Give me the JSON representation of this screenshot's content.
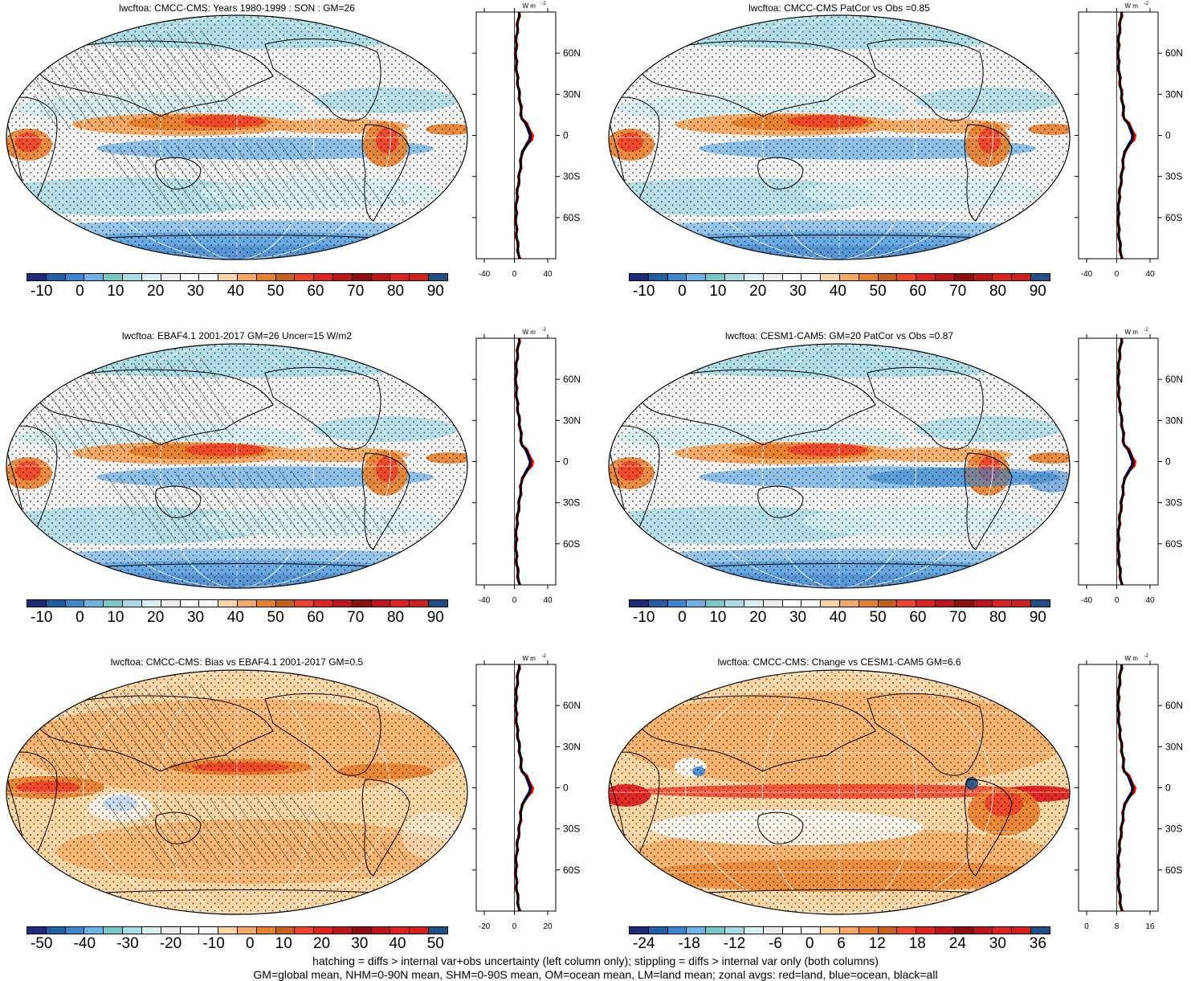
{
  "panels": [
    {
      "id": "p1",
      "title": "lwcftoa: CMCC-CMS: Years 1980-1999 : SON : GM=26",
      "scheme": "abs",
      "hatch": true,
      "cb_labels": [
        "-10",
        "0",
        "10",
        "20",
        "30",
        "40",
        "50",
        "60",
        "70",
        "80",
        "90"
      ],
      "zonal_xticks": [
        "-40",
        "0",
        "40"
      ],
      "zonal_lat_ticks": [
        "60N",
        "30N",
        "0",
        "30S",
        "60S"
      ]
    },
    {
      "id": "p2",
      "title": "lwcftoa: CMCC-CMS PatCor vs Obs =0.85",
      "scheme": "abs",
      "hatch": false,
      "cb_labels": [
        "-10",
        "0",
        "10",
        "20",
        "30",
        "40",
        "50",
        "60",
        "70",
        "80",
        "90"
      ],
      "zonal_xticks": [
        "-40",
        "0",
        "40"
      ],
      "zonal_lat_ticks": [
        "60N",
        "30N",
        "0",
        "30S",
        "60S"
      ]
    },
    {
      "id": "p3",
      "title": "lwcftoa: EBAF4.1 2001-2017 GM=26 Uncer=15 W/m2",
      "scheme": "abs",
      "hatch": true,
      "cb_labels": [
        "-10",
        "0",
        "10",
        "20",
        "30",
        "40",
        "50",
        "60",
        "70",
        "80",
        "90"
      ],
      "zonal_xticks": [
        "-40",
        "0",
        "40"
      ],
      "zonal_lat_ticks": [
        "60N",
        "30N",
        "0",
        "30S",
        "60S"
      ]
    },
    {
      "id": "p4",
      "title": "lwcftoa: CESM1-CAM5: GM=20 PatCor vs Obs =0.87",
      "scheme": "abs",
      "hatch": false,
      "cb_labels": [
        "-10",
        "0",
        "10",
        "20",
        "30",
        "40",
        "50",
        "60",
        "70",
        "80",
        "90"
      ],
      "zonal_xticks": [
        "-40",
        "0",
        "40"
      ],
      "zonal_lat_ticks": [
        "60N",
        "30N",
        "0",
        "30S",
        "60S"
      ]
    },
    {
      "id": "p5",
      "title": "lwcftoa: CMCC-CMS: Bias vs EBAF4.1 2001-2017  GM=0.5",
      "scheme": "bias",
      "hatch": true,
      "cb_labels": [
        "-50",
        "-40",
        "-30",
        "-20",
        "-10",
        "0",
        "10",
        "20",
        "30",
        "40",
        "50"
      ],
      "zonal_xticks": [
        "-20",
        "0",
        "20"
      ],
      "zonal_lat_ticks": [
        "60N",
        "30N",
        "0",
        "30S",
        "60S"
      ]
    },
    {
      "id": "p6",
      "title": "lwcftoa: CMCC-CMS: Change vs CESM1-CAM5 GM=6.6",
      "scheme": "change",
      "hatch": false,
      "cb_labels": [
        "-24",
        "-18",
        "-12",
        "-6",
        "0",
        "6",
        "12",
        "18",
        "24",
        "30",
        "36"
      ],
      "zonal_xticks": [
        "0",
        "8",
        "16"
      ],
      "zonal_lat_ticks": [
        "60N",
        "30N",
        "0",
        "30S",
        "60S"
      ]
    }
  ],
  "zonal_unit_label": "W m",
  "zonal_unit_sup": "-2",
  "colors": {
    "colorbar": [
      "#1c2a7a",
      "#1f5fa8",
      "#3b86d0",
      "#6fb2e6",
      "#76c8c8",
      "#a9dbe6",
      "#d6f0f3",
      "#ececec",
      "#ffffff",
      "#f7f7f7",
      "#fbd6a5",
      "#f6a860",
      "#e8802c",
      "#c8601a",
      "#f0432a",
      "#e0201f",
      "#c0141a",
      "#900d12",
      "#c0141a",
      "#e0201f",
      "#d21e1e",
      "#1f4f86"
    ],
    "land_line": "#000000",
    "zonal_red": "#ff0000",
    "zonal_blue": "#0000ff",
    "zonal_black": "#000000"
  },
  "footer": [
    "hatching = diffs > internal var+obs uncertainty (left column only); stippling = diffs > internal var only (both columns)",
    "GM=global mean, NHM=0-90N mean, SHM=0-90S mean, OM=ocean mean, LM=land mean; zonal avgs: red=land, blue=ocean, black=all"
  ]
}
